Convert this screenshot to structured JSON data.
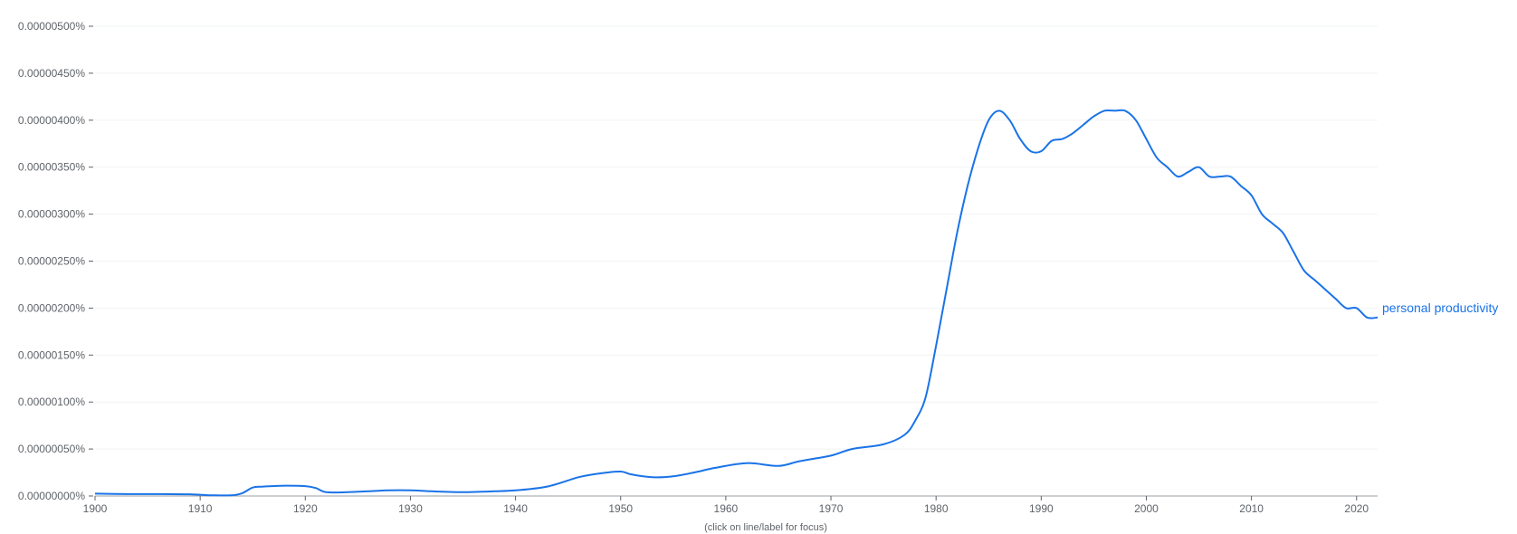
{
  "chart_data": {
    "type": "line",
    "title": "",
    "xlabel": "",
    "ylabel": "",
    "xlim": [
      1900,
      2022
    ],
    "ylim": [
      0,
      5e-06
    ],
    "grid": true,
    "y_ticks": [
      0,
      5e-07,
      1e-06,
      1.5e-06,
      2e-06,
      2.5e-06,
      3e-06,
      3.5e-06,
      4e-06,
      4.5e-06,
      5e-06
    ],
    "y_tick_labels": [
      "0.00000000%",
      "0.00000050%",
      "0.00000100%",
      "0.00000150%",
      "0.00000200%",
      "0.00000250%",
      "0.00000300%",
      "0.00000350%",
      "0.00000400%",
      "0.00000450%",
      "0.00000500%"
    ],
    "x_ticks": [
      1900,
      1910,
      1920,
      1930,
      1940,
      1950,
      1960,
      1970,
      1980,
      1990,
      2000,
      2010,
      2020
    ],
    "x_tick_labels": [
      "1900",
      "1910",
      "1920",
      "1930",
      "1940",
      "1950",
      "1960",
      "1970",
      "1980",
      "1990",
      "2000",
      "2010",
      "2020"
    ],
    "note": "(click on line/label for focus)",
    "series": [
      {
        "name": "personal productivity",
        "color": "#1a73e8",
        "x": [
          1900,
          1903,
          1906,
          1909,
          1911,
          1913,
          1914,
          1915,
          1916,
          1918,
          1920,
          1921,
          1922,
          1924,
          1926,
          1928,
          1930,
          1932,
          1935,
          1938,
          1940,
          1943,
          1946,
          1948,
          1950,
          1951,
          1953,
          1955,
          1957,
          1959,
          1962,
          1965,
          1967,
          1970,
          1972,
          1975,
          1977,
          1978,
          1979,
          1980,
          1981,
          1982,
          1983,
          1984,
          1985,
          1986,
          1987,
          1988,
          1989,
          1990,
          1991,
          1992,
          1993,
          1994,
          1995,
          1996,
          1997,
          1998,
          1999,
          2000,
          2001,
          2002,
          2003,
          2004,
          2005,
          2006,
          2007,
          2008,
          2009,
          2010,
          2011,
          2012,
          2013,
          2014,
          2015,
          2016,
          2017,
          2018,
          2019,
          2020,
          2021,
          2022
        ],
        "values": [
          2.5e-08,
          2e-08,
          2e-08,
          1.8e-08,
          8e-09,
          8e-09,
          3e-08,
          9e-08,
          1e-07,
          1.1e-07,
          1.05e-07,
          8.5e-08,
          4e-08,
          4e-08,
          5e-08,
          6e-08,
          6e-08,
          5e-08,
          4e-08,
          5e-08,
          6e-08,
          1e-07,
          2e-07,
          2.4e-07,
          2.6e-07,
          2.3e-07,
          2e-07,
          2.1e-07,
          2.5e-07,
          3e-07,
          3.5e-07,
          3.2e-07,
          3.7e-07,
          4.3e-07,
          5e-07,
          5.5e-07,
          6.5e-07,
          8e-07,
          1.05e-06,
          1.6e-06,
          2.2e-06,
          2.8e-06,
          3.3e-06,
          3.7e-06,
          4e-06,
          4.1e-06,
          4e-06,
          3.8e-06,
          3.67e-06,
          3.67e-06,
          3.78e-06,
          3.8e-06,
          3.86e-06,
          3.95e-06,
          4.04e-06,
          4.1e-06,
          4.1e-06,
          4.1e-06,
          4e-06,
          3.8e-06,
          3.6e-06,
          3.5e-06,
          3.4e-06,
          3.45e-06,
          3.5e-06,
          3.4e-06,
          3.4e-06,
          3.4e-06,
          3.3e-06,
          3.2e-06,
          3e-06,
          2.9e-06,
          2.8e-06,
          2.6e-06,
          2.4e-06,
          2.3e-06,
          2.2e-06,
          2.1e-06,
          2e-06,
          2e-06,
          1.9e-06,
          1.9e-06
        ]
      }
    ]
  }
}
